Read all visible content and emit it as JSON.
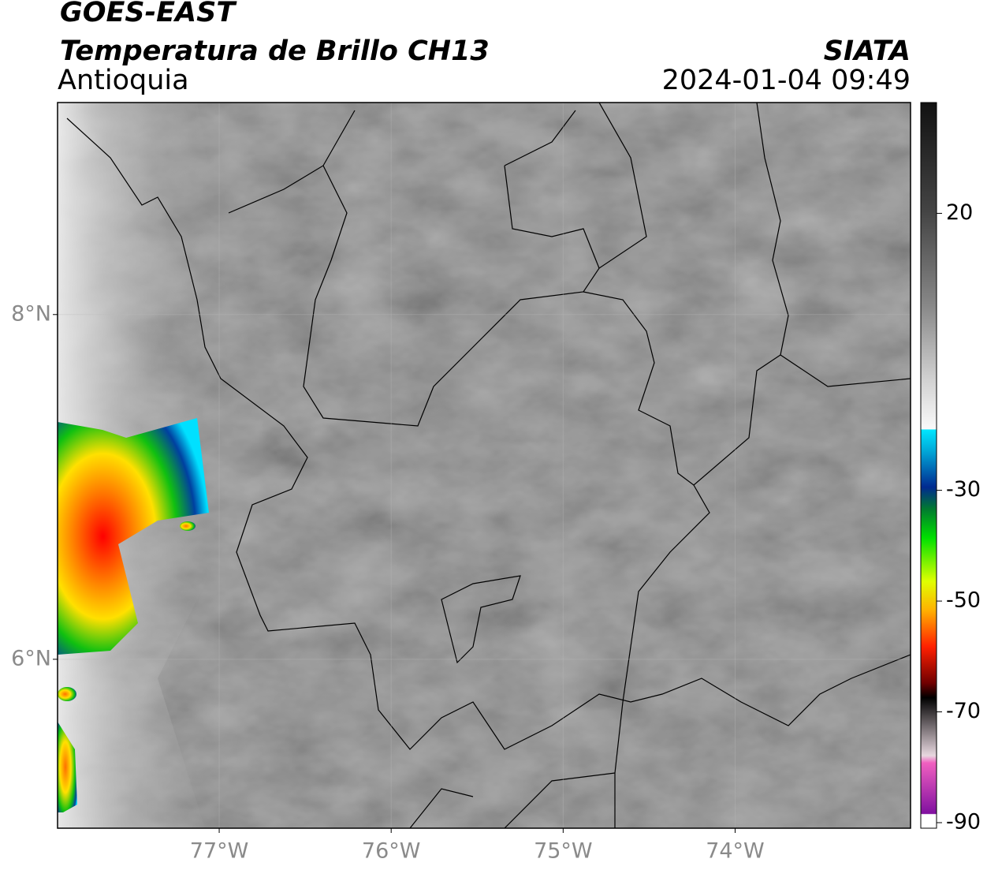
{
  "header": {
    "satellite": "GOES-EAST",
    "product": "Temperatura de Brillo CH13",
    "region": "Antioquia",
    "source": "SIATA",
    "datetime": "2024-01-04 09:49"
  },
  "map": {
    "xlim": [
      -77.94,
      -72.98
    ],
    "ylim": [
      5.02,
      9.23
    ],
    "xticks": [
      {
        "value": -77,
        "label": "77°W"
      },
      {
        "value": -76,
        "label": "76°W"
      },
      {
        "value": -75,
        "label": "75°W"
      },
      {
        "value": -74,
        "label": "74°W"
      }
    ],
    "yticks": [
      {
        "value": 6,
        "label": "6°N"
      },
      {
        "value": 8,
        "label": "8°N"
      }
    ],
    "grid": true
  },
  "colorbar": {
    "lim": [
      -91,
      40
    ],
    "ticks": [
      20,
      -30,
      -50,
      -70,
      -90
    ]
  }
}
